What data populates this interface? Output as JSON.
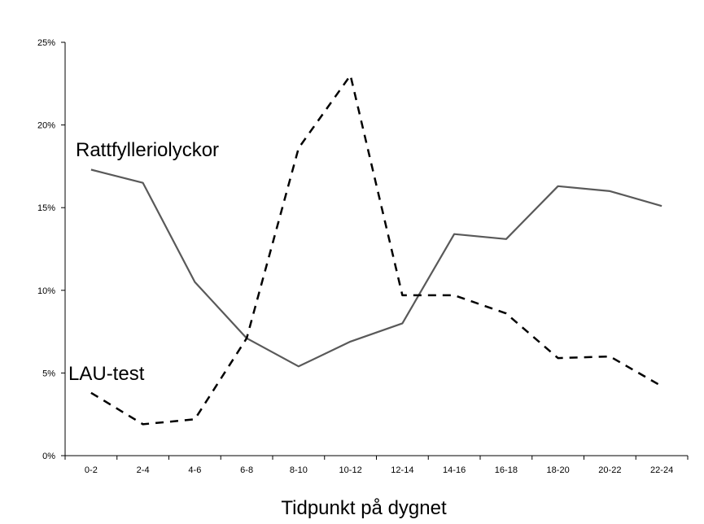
{
  "chart_data": {
    "type": "line",
    "title": "",
    "xlabel": "Tidpunkt på dygnet",
    "ylabel": "",
    "categories": [
      "0-2",
      "2-4",
      "4-6",
      "6-8",
      "8-10",
      "10-12",
      "12-14",
      "14-16",
      "16-18",
      "18-20",
      "20-22",
      "22-24"
    ],
    "yticks": [
      "0%",
      "5%",
      "10%",
      "15%",
      "20%",
      "25%"
    ],
    "ytick_values": [
      0,
      5,
      10,
      15,
      20,
      25
    ],
    "ylim": [
      0,
      25
    ],
    "grid": false,
    "legend": "inline labels",
    "series": [
      {
        "name": "Rattfylleriolyckor",
        "style": "solid",
        "color": "#595959",
        "values": [
          17.3,
          16.5,
          10.5,
          7.1,
          5.4,
          6.9,
          8.0,
          13.4,
          13.1,
          16.3,
          16.0,
          15.1
        ]
      },
      {
        "name": "LAU-test",
        "style": "dashed",
        "color": "#000000",
        "values": [
          3.8,
          1.9,
          2.2,
          7.1,
          18.6,
          23.0,
          9.7,
          9.7,
          8.6,
          5.9,
          6.0,
          4.2
        ]
      }
    ]
  }
}
